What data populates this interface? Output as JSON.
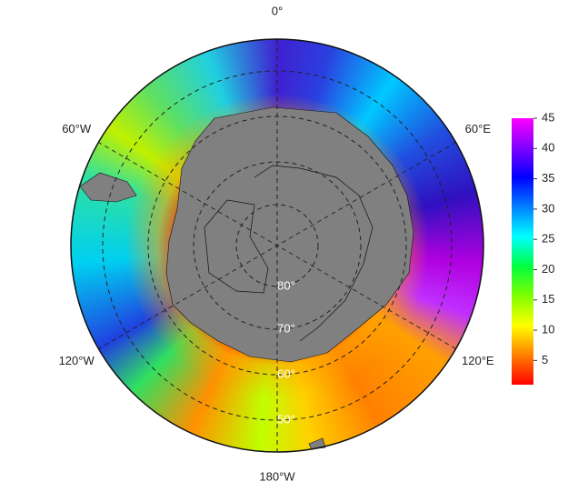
{
  "map": {
    "longitude_labels": [
      "0°",
      "60°E",
      "120°E",
      "180°W",
      "120°W",
      "60°W"
    ],
    "latitude_labels": [
      "80°",
      "70°",
      "60°",
      "50°"
    ],
    "colorbar": {
      "range": [
        1,
        45
      ],
      "ticks": [
        5,
        10,
        15,
        20,
        25,
        30,
        35,
        40,
        45
      ],
      "colors": [
        "#ff0000",
        "#ff8000",
        "#ffff00",
        "#80ff00",
        "#00ff40",
        "#00ffff",
        "#0080ff",
        "#0000ff",
        "#8000ff",
        "#ff00ff"
      ]
    }
  }
}
